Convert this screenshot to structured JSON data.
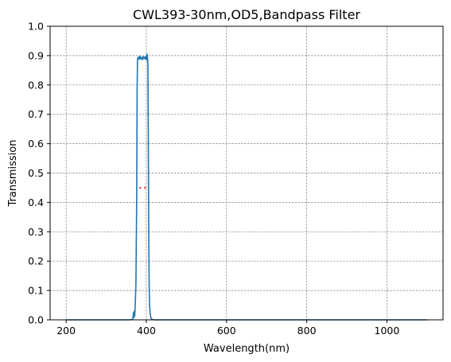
{
  "chart_data": {
    "type": "line",
    "title": "CWL393-30nm,OD5,Bandpass Filter",
    "xlabel": "Wavelength(nm)",
    "ylabel": "Transmission",
    "xlim": [
      160,
      1140
    ],
    "ylim": [
      0.0,
      1.0
    ],
    "x_ticks": [
      200,
      400,
      600,
      800,
      1000
    ],
    "y_ticks": [
      0.0,
      0.1,
      0.2,
      0.3,
      0.4,
      0.5,
      0.6,
      0.7,
      0.8,
      0.9,
      1.0
    ],
    "grid": true,
    "grid_style": "dashed",
    "series": [
      {
        "color": "#1f77b4",
        "style": "solid",
        "x": [
          200,
          360,
          366,
          367,
          368,
          369,
          370,
          371,
          372,
          374,
          376,
          377,
          378,
          380,
          382,
          384,
          386,
          388,
          390,
          392,
          394,
          396,
          398,
          400,
          401,
          402,
          403,
          404,
          405,
          406,
          407,
          408,
          410,
          412,
          415,
          420,
          430,
          600,
          800,
          1000,
          1100
        ],
        "y": [
          0.0,
          0.0,
          0.002,
          0.01,
          0.025,
          0.008,
          0.03,
          0.012,
          0.04,
          0.12,
          0.42,
          0.78,
          0.89,
          0.895,
          0.887,
          0.898,
          0.889,
          0.894,
          0.886,
          0.897,
          0.89,
          0.895,
          0.888,
          0.9,
          0.885,
          0.905,
          0.89,
          0.87,
          0.6,
          0.3,
          0.12,
          0.05,
          0.015,
          0.005,
          0.001,
          0.0,
          0.0,
          0.0,
          0.0,
          0.0,
          0.0
        ]
      },
      {
        "color": "#d62728",
        "style": "dotted",
        "x": [
          383,
          403
        ],
        "y": [
          0.45,
          0.45
        ]
      }
    ]
  }
}
